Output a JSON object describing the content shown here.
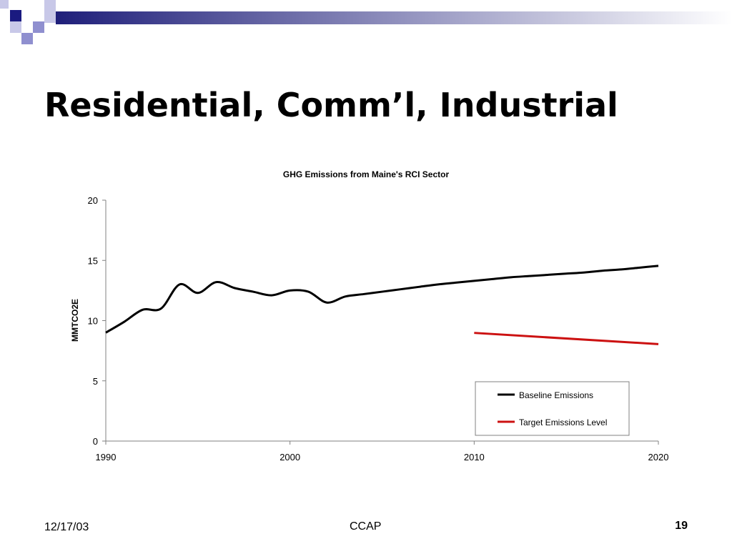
{
  "slide": {
    "title": "Residential, Comm’l, Industrial",
    "footer_date": "12/17/03",
    "footer_center": "CCAP",
    "page_number": "19"
  },
  "colors": {
    "banner_dark": "#1f1f7a",
    "banner_light": "#ffffff",
    "square_dark": "#1a1a80",
    "square_mid": "#8f8fcf",
    "square_light": "#c8c8e8",
    "baseline": "#000000",
    "target": "#cc1111"
  },
  "chart_data": {
    "type": "line",
    "title": "GHG Emissions from Maine's RCI Sector",
    "xlabel": "",
    "ylabel": "MMTCO2E",
    "xlim": [
      1990,
      2020
    ],
    "ylim": [
      0,
      20
    ],
    "x_ticks": [
      "1990",
      "2000",
      "2010",
      "2020"
    ],
    "y_ticks": [
      "0",
      "5",
      "10",
      "15",
      "20"
    ],
    "grid": false,
    "legend_position": "bottom-right",
    "series": [
      {
        "name": "Baseline Emissions",
        "color": "#000000",
        "x": [
          1990,
          1991,
          1992,
          1993,
          1994,
          1995,
          1996,
          1997,
          1998,
          1999,
          2000,
          2001,
          2002,
          2003,
          2004,
          2005,
          2006,
          2007,
          2008,
          2009,
          2010,
          2011,
          2012,
          2013,
          2014,
          2015,
          2016,
          2017,
          2018,
          2019,
          2020
        ],
        "values": [
          9.0,
          9.9,
          10.9,
          11.0,
          13.0,
          12.3,
          13.2,
          12.7,
          12.4,
          12.1,
          12.5,
          12.4,
          11.5,
          12.0,
          12.2,
          12.4,
          12.6,
          12.8,
          13.0,
          13.15,
          13.3,
          13.45,
          13.6,
          13.7,
          13.8,
          13.9,
          14.0,
          14.15,
          14.25,
          14.4,
          14.55
        ]
      },
      {
        "name": "Target Emissions Level",
        "color": "#cc1111",
        "x": [
          2010,
          2020
        ],
        "values": [
          8.98,
          8.05
        ]
      }
    ]
  }
}
